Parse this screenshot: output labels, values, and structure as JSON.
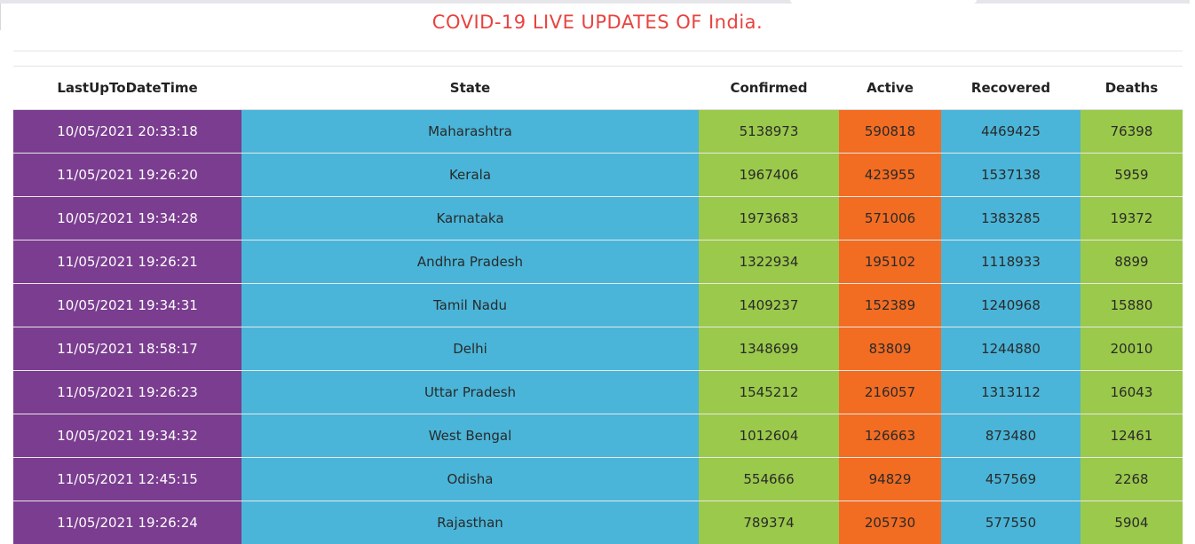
{
  "page": {
    "title": "COVID-19 LIVE UPDATES OF India."
  },
  "colors": {
    "title": "#e8433f",
    "time_col": "#7a3d8f",
    "state_col": "#4ab5d9",
    "confirmed_col": "#9bc94b",
    "active_col": "#f26c22",
    "recovered_col": "#4ab5d9",
    "deaths_col": "#9bc94b"
  },
  "table": {
    "headers": {
      "time": "LastUpToDateTime",
      "state": "State",
      "confirmed": "Confirmed",
      "active": "Active",
      "recovered": "Recovered",
      "deaths": "Deaths"
    },
    "rows": [
      {
        "time": "10/05/2021 20:33:18",
        "state": "Maharashtra",
        "confirmed": "5138973",
        "active": "590818",
        "recovered": "4469425",
        "deaths": "76398"
      },
      {
        "time": "11/05/2021 19:26:20",
        "state": "Kerala",
        "confirmed": "1967406",
        "active": "423955",
        "recovered": "1537138",
        "deaths": "5959"
      },
      {
        "time": "10/05/2021 19:34:28",
        "state": "Karnataka",
        "confirmed": "1973683",
        "active": "571006",
        "recovered": "1383285",
        "deaths": "19372"
      },
      {
        "time": "11/05/2021 19:26:21",
        "state": "Andhra Pradesh",
        "confirmed": "1322934",
        "active": "195102",
        "recovered": "1118933",
        "deaths": "8899"
      },
      {
        "time": "10/05/2021 19:34:31",
        "state": "Tamil Nadu",
        "confirmed": "1409237",
        "active": "152389",
        "recovered": "1240968",
        "deaths": "15880"
      },
      {
        "time": "11/05/2021 18:58:17",
        "state": "Delhi",
        "confirmed": "1348699",
        "active": "83809",
        "recovered": "1244880",
        "deaths": "20010"
      },
      {
        "time": "11/05/2021 19:26:23",
        "state": "Uttar Pradesh",
        "confirmed": "1545212",
        "active": "216057",
        "recovered": "1313112",
        "deaths": "16043"
      },
      {
        "time": "10/05/2021 19:34:32",
        "state": "West Bengal",
        "confirmed": "1012604",
        "active": "126663",
        "recovered": "873480",
        "deaths": "12461"
      },
      {
        "time": "11/05/2021 12:45:15",
        "state": "Odisha",
        "confirmed": "554666",
        "active": "94829",
        "recovered": "457569",
        "deaths": "2268"
      },
      {
        "time": "11/05/2021 19:26:24",
        "state": "Rajasthan",
        "confirmed": "789374",
        "active": "205730",
        "recovered": "577550",
        "deaths": "5904"
      }
    ]
  }
}
